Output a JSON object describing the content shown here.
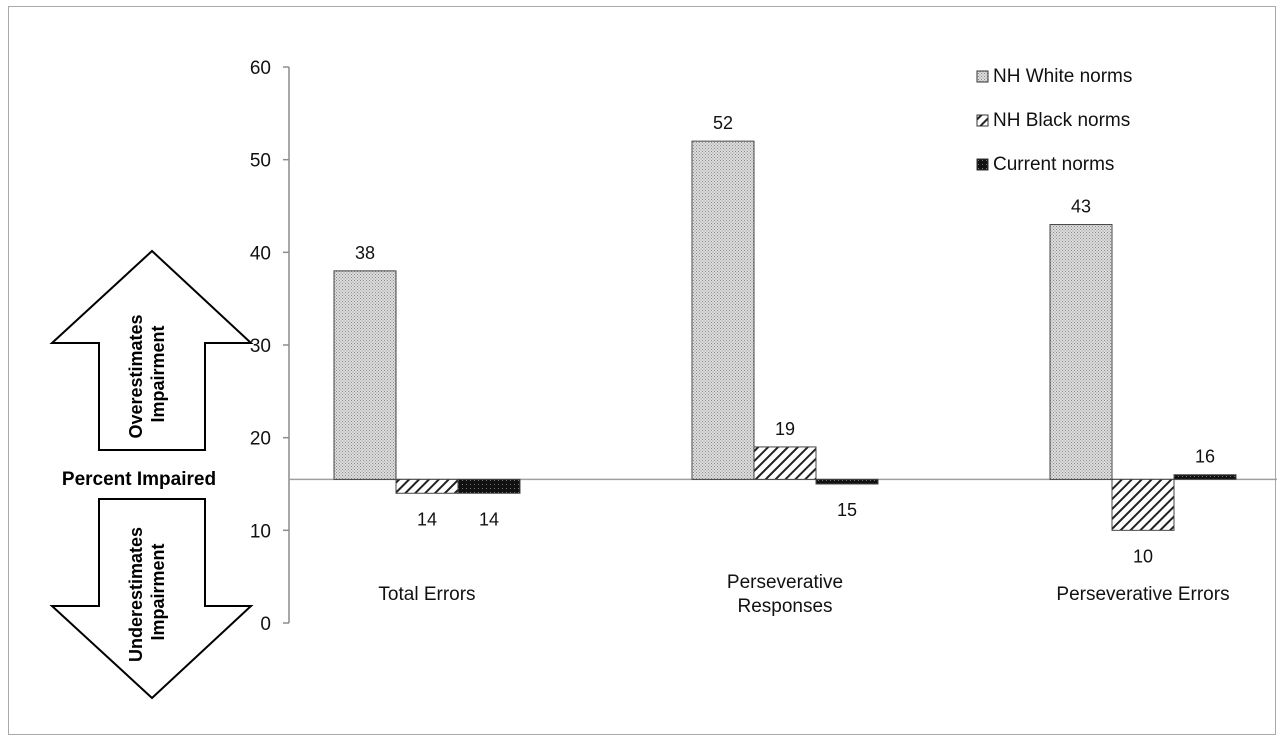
{
  "chart_data": {
    "type": "bar",
    "categories": [
      "Total Errors",
      "Perseverative Responses",
      "Perseverative Errors"
    ],
    "category_lines": [
      [
        "Total Errors"
      ],
      [
        "Perseverative",
        "Responses"
      ],
      [
        "Perseverative Errors"
      ]
    ],
    "series": [
      {
        "name": "NH White norms",
        "values": [
          38,
          52,
          43
        ],
        "labels": [
          "38",
          "52",
          "43"
        ],
        "pattern": "dots"
      },
      {
        "name": "NH Black norms",
        "values": [
          14,
          19,
          10
        ],
        "labels": [
          "14",
          "19",
          "10"
        ],
        "pattern": "hatch"
      },
      {
        "name": "Current norms",
        "values": [
          14,
          15,
          16
        ],
        "labels": [
          "14",
          "15",
          "16"
        ],
        "pattern": "dark"
      }
    ],
    "baseline": 15.5,
    "ylim": [
      0,
      60
    ],
    "yticks": [
      0,
      10,
      20,
      30,
      40,
      50,
      60
    ],
    "ylabel": "Percent Impaired",
    "arrow_up_label": [
      "Overestimates",
      "Impairment"
    ],
    "arrow_down_label": [
      "Underestimates",
      "Impairment"
    ],
    "legend_position": "top-right",
    "grid": false
  }
}
